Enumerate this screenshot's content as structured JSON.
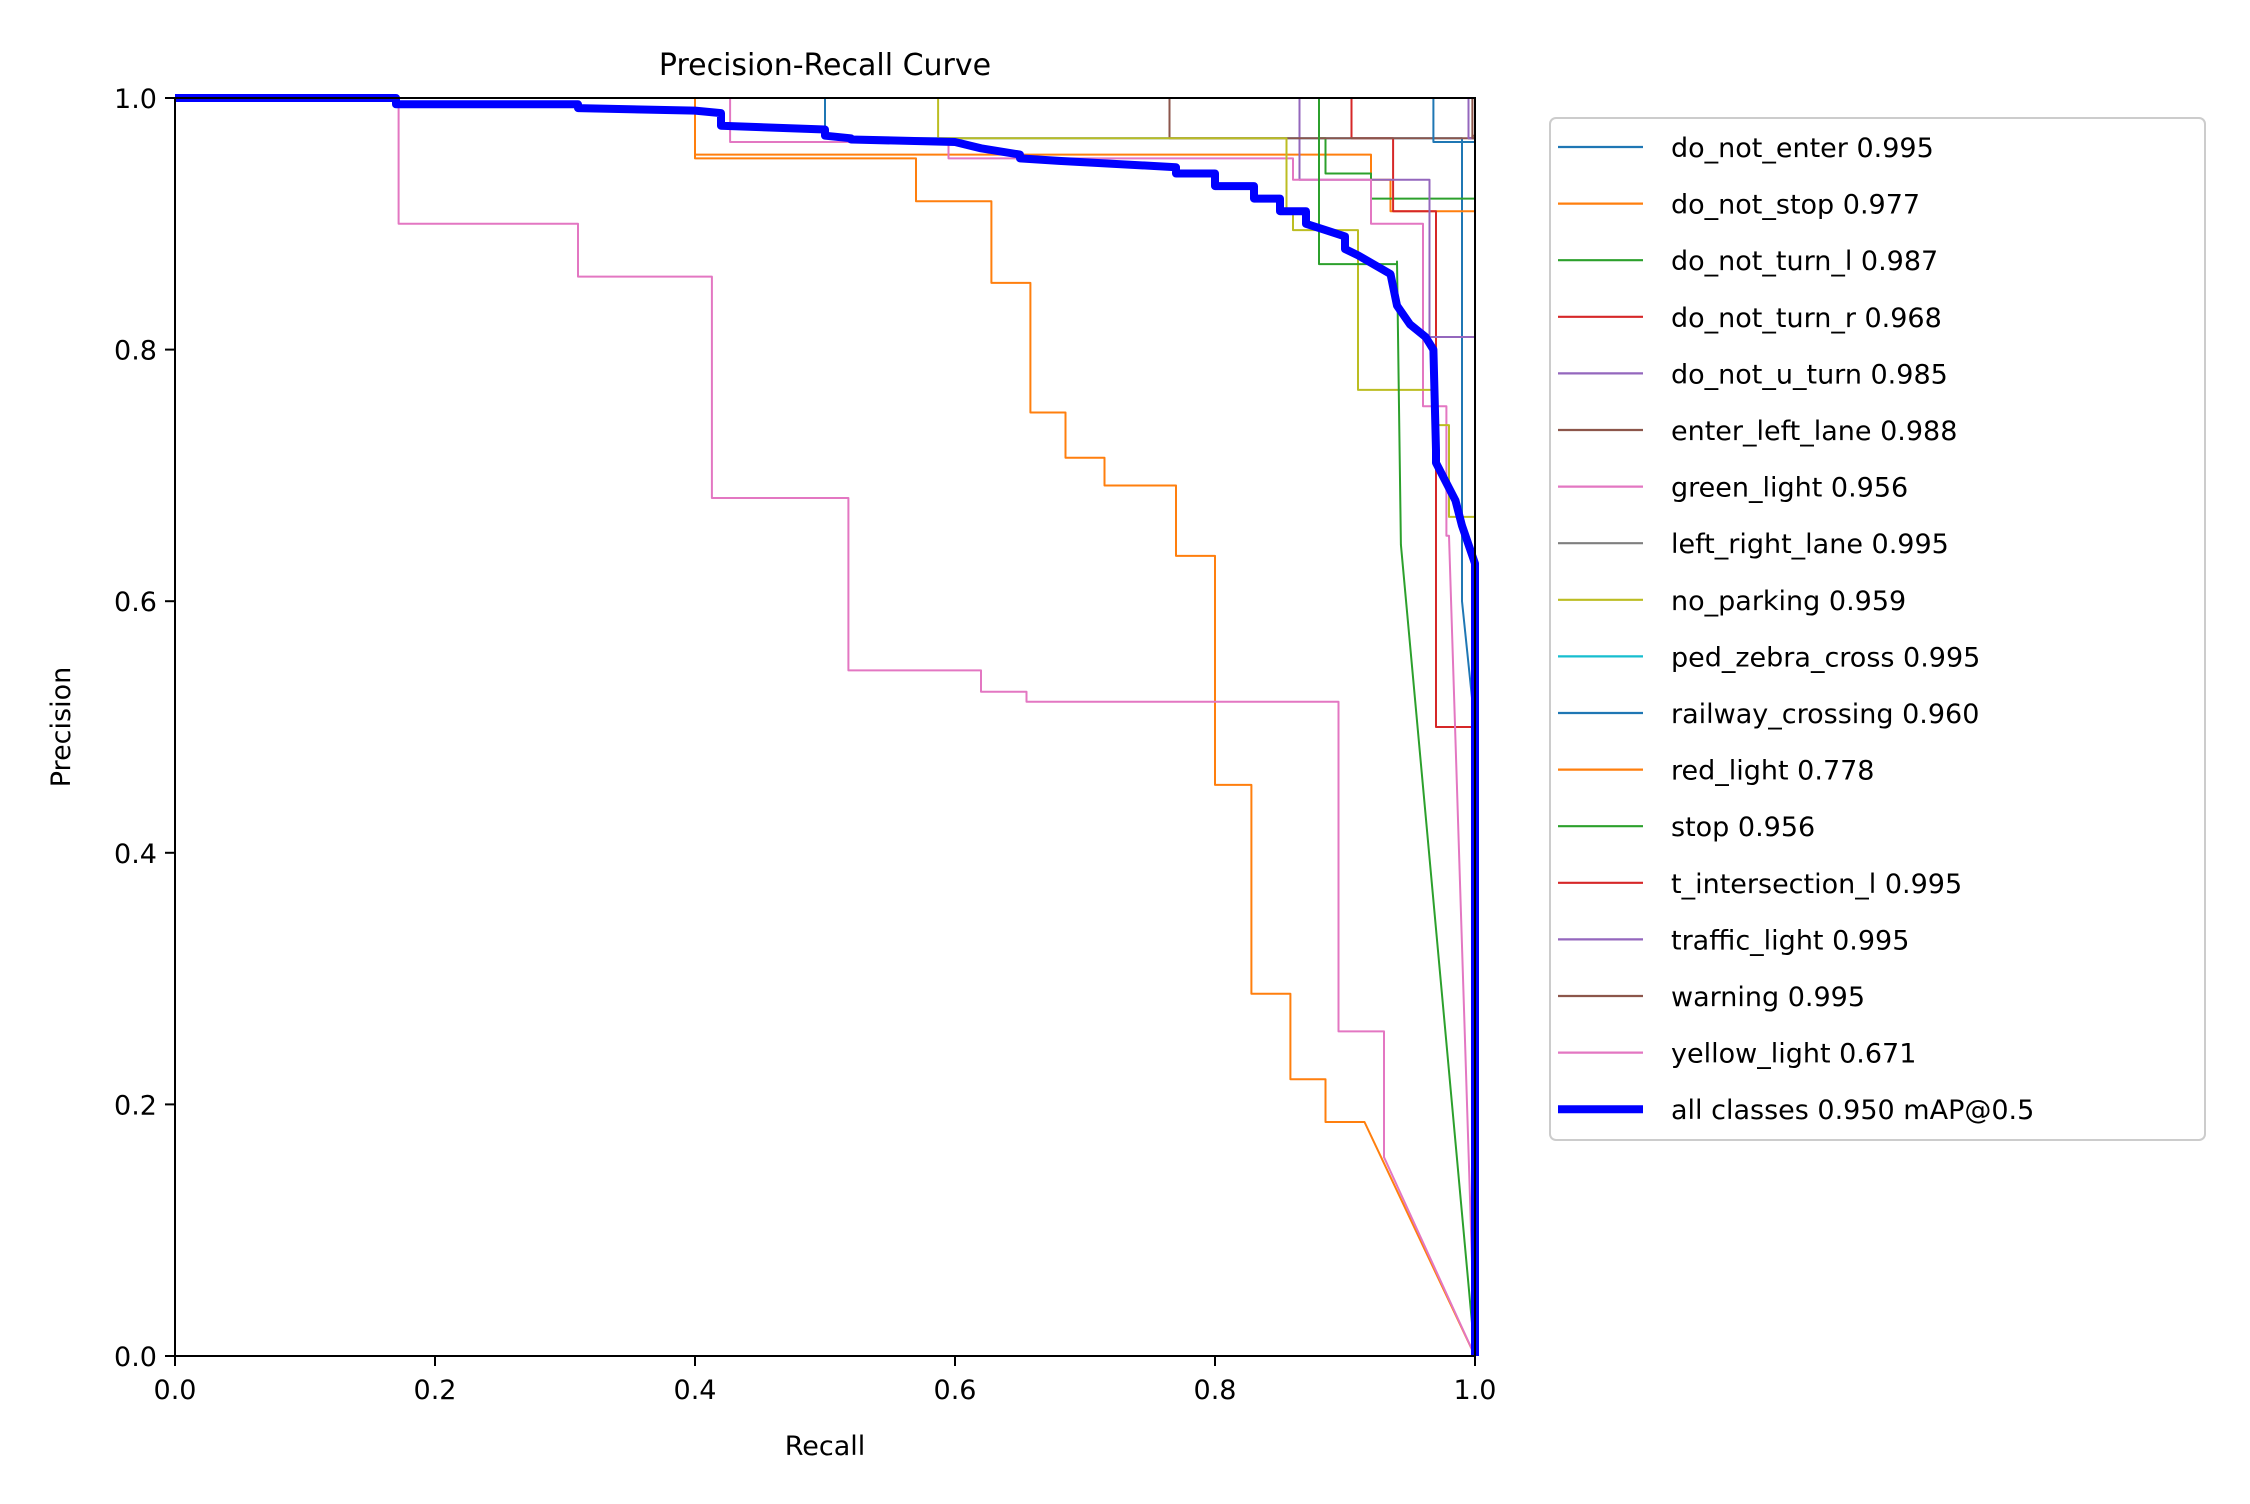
{
  "chart_data": {
    "type": "line",
    "title": "Precision-Recall Curve",
    "xlabel": "Recall",
    "ylabel": "Precision",
    "xlim": [
      0,
      1
    ],
    "ylim": [
      0,
      1
    ],
    "xticks": [
      "0.0",
      "0.2",
      "0.4",
      "0.6",
      "0.8",
      "1.0"
    ],
    "yticks": [
      "0.0",
      "0.2",
      "0.4",
      "0.6",
      "0.8",
      "1.0"
    ],
    "grid": false,
    "legend_position": "outside-right",
    "series": [
      {
        "name": "do_not_enter 0.995",
        "color": "#1f77b4",
        "width": 1,
        "x": [
          0,
          0.5,
          0.5,
          0.99,
          0.99,
          1,
          1
        ],
        "y": [
          1,
          1,
          0.968,
          0.968,
          0.6,
          0.5,
          0
        ]
      },
      {
        "name": "do_not_stop 0.977",
        "color": "#ff7f0e",
        "width": 1,
        "x": [
          0,
          0.4,
          0.4,
          0.92,
          0.92,
          0.935,
          0.935,
          1,
          1
        ],
        "y": [
          1,
          1,
          0.955,
          0.955,
          0.935,
          0.935,
          0.91,
          0.91,
          0
        ]
      },
      {
        "name": "do_not_turn_l 0.987",
        "color": "#2ca02c",
        "width": 1,
        "x": [
          0,
          0.88,
          0.88,
          0.885,
          0.885,
          0.92,
          0.92,
          1,
          1
        ],
        "y": [
          1,
          1,
          0.968,
          0.968,
          0.94,
          0.94,
          0.92,
          0.92,
          0
        ]
      },
      {
        "name": "do_not_turn_r 0.968",
        "color": "#d62728",
        "width": 1,
        "x": [
          0,
          0.905,
          0.905,
          0.937,
          0.937,
          0.97,
          0.97,
          1,
          1
        ],
        "y": [
          1,
          1,
          0.968,
          0.968,
          0.91,
          0.91,
          0.5,
          0.5,
          0
        ]
      },
      {
        "name": "do_not_u_turn 0.985",
        "color": "#9467bd",
        "width": 1,
        "x": [
          0,
          0.865,
          0.865,
          0.965,
          0.965,
          1,
          1
        ],
        "y": [
          1,
          1,
          0.935,
          0.935,
          0.81,
          0.81,
          0
        ]
      },
      {
        "name": "enter_left_lane 0.988",
        "color": "#8c564b",
        "width": 1,
        "x": [
          0,
          0.765,
          0.765,
          0.998,
          0.998,
          1,
          1
        ],
        "y": [
          1,
          1,
          0.968,
          0.968,
          0.97,
          0.97,
          0
        ]
      },
      {
        "name": "green_light 0.956",
        "color": "#e377c2",
        "width": 1,
        "x": [
          0,
          0.427,
          0.427,
          0.595,
          0.595,
          0.86,
          0.86,
          0.92,
          0.92,
          0.96,
          0.96,
          0.978,
          0.978,
          0.98,
          1
        ],
        "y": [
          1,
          1,
          0.965,
          0.965,
          0.952,
          0.952,
          0.935,
          0.935,
          0.9,
          0.9,
          0.755,
          0.755,
          0.652,
          0.652,
          0
        ]
      },
      {
        "name": "left_right_lane 0.995",
        "color": "#7f7f7f",
        "width": 1,
        "x": [
          0,
          0.995,
          0.995,
          1,
          1
        ],
        "y": [
          1,
          1,
          0.968,
          0.968,
          0
        ]
      },
      {
        "name": "no_parking 0.959",
        "color": "#bcbd22",
        "width": 1,
        "x": [
          0,
          0.587,
          0.587,
          0.855,
          0.855,
          0.86,
          0.86,
          0.91,
          0.91,
          0.97,
          0.97,
          0.98,
          0.98,
          1,
          1
        ],
        "y": [
          1,
          1,
          0.968,
          0.968,
          0.91,
          0.91,
          0.895,
          0.895,
          0.768,
          0.768,
          0.74,
          0.74,
          0.667,
          0.667,
          0
        ]
      },
      {
        "name": "ped_zebra_cross 0.995",
        "color": "#17becf",
        "width": 1,
        "x": [
          0,
          0.995,
          0.995,
          1,
          1
        ],
        "y": [
          1,
          1,
          0.968,
          0.968,
          0
        ]
      },
      {
        "name": "railway_crossing 0.960",
        "color": "#1f77b4",
        "width": 1,
        "x": [
          0,
          0.968,
          0.968,
          1,
          1
        ],
        "y": [
          1,
          1,
          0.965,
          0.965,
          0
        ]
      },
      {
        "name": "red_light 0.778",
        "color": "#ff7f0e",
        "width": 1,
        "x": [
          0,
          0.4,
          0.4,
          0.57,
          0.57,
          0.628,
          0.628,
          0.658,
          0.658,
          0.685,
          0.685,
          0.715,
          0.715,
          0.77,
          0.77,
          0.8,
          0.8,
          0.828,
          0.828,
          0.858,
          0.858,
          0.885,
          0.885,
          0.915,
          1
        ],
        "y": [
          1,
          1,
          0.952,
          0.952,
          0.918,
          0.918,
          0.853,
          0.853,
          0.75,
          0.75,
          0.714,
          0.714,
          0.692,
          0.692,
          0.636,
          0.636,
          0.454,
          0.454,
          0.288,
          0.288,
          0.22,
          0.22,
          0.186,
          0.186,
          0
        ]
      },
      {
        "name": "stop 0.956",
        "color": "#2ca02c",
        "width": 1,
        "x": [
          0,
          0.88,
          0.88,
          0.94,
          0.94,
          0.943,
          1
        ],
        "y": [
          1,
          1,
          0.868,
          0.868,
          0.87,
          0.645,
          0
        ]
      },
      {
        "name": "t_intersection_l 0.995",
        "color": "#d62728",
        "width": 1,
        "x": [
          0,
          0.995,
          0.995,
          1,
          1
        ],
        "y": [
          1,
          1,
          0.968,
          0.968,
          0
        ]
      },
      {
        "name": "traffic_light 0.995",
        "color": "#9467bd",
        "width": 1,
        "x": [
          0,
          0.995,
          0.995,
          1,
          1
        ],
        "y": [
          1,
          1,
          0.968,
          0.968,
          0
        ]
      },
      {
        "name": "warning 0.995",
        "color": "#8c564b",
        "width": 1,
        "x": [
          0,
          0.998,
          0.998,
          1,
          1
        ],
        "y": [
          1,
          1,
          0.968,
          0.968,
          0
        ]
      },
      {
        "name": "yellow_light 0.671",
        "color": "#e377c2",
        "width": 1,
        "x": [
          0,
          0.172,
          0.172,
          0.31,
          0.31,
          0.413,
          0.413,
          0.518,
          0.518,
          0.62,
          0.62,
          0.655,
          0.655,
          0.895,
          0.895,
          0.93,
          0.93,
          1
        ],
        "y": [
          1,
          1,
          0.9,
          0.9,
          0.858,
          0.858,
          0.682,
          0.682,
          0.545,
          0.545,
          0.528,
          0.528,
          0.52,
          0.52,
          0.258,
          0.258,
          0.158,
          0
        ]
      },
      {
        "name": "all classes 0.950 mAP@0.5",
        "color": "#0000ff",
        "width": 4,
        "x": [
          0,
          0.17,
          0.17,
          0.31,
          0.31,
          0.4,
          0.42,
          0.42,
          0.5,
          0.5,
          0.52,
          0.52,
          0.6,
          0.62,
          0.65,
          0.65,
          0.68,
          0.77,
          0.77,
          0.8,
          0.8,
          0.83,
          0.83,
          0.85,
          0.85,
          0.87,
          0.87,
          0.885,
          0.9,
          0.9,
          0.91,
          0.935,
          0.94,
          0.95,
          0.962,
          0.968,
          0.97,
          0.97,
          0.985,
          0.99,
          0.995,
          1,
          1
        ],
        "y": [
          1,
          1,
          0.995,
          0.995,
          0.992,
          0.99,
          0.988,
          0.978,
          0.975,
          0.97,
          0.968,
          0.967,
          0.965,
          0.96,
          0.955,
          0.952,
          0.95,
          0.945,
          0.94,
          0.94,
          0.93,
          0.93,
          0.92,
          0.92,
          0.91,
          0.91,
          0.9,
          0.895,
          0.89,
          0.88,
          0.875,
          0.86,
          0.835,
          0.82,
          0.81,
          0.8,
          0.72,
          0.71,
          0.68,
          0.66,
          0.645,
          0.63,
          0
        ]
      }
    ]
  }
}
